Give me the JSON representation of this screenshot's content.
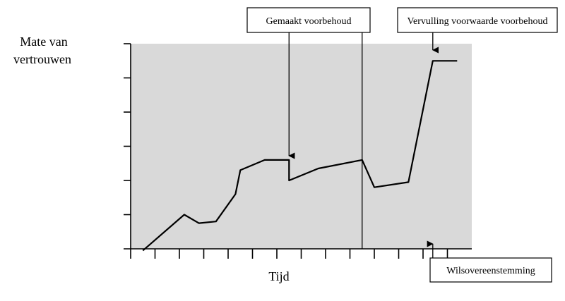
{
  "chart_data": {
    "type": "line",
    "ylabel_lines": [
      "Mate van",
      "vertrouwen"
    ],
    "xlabel": "Tijd",
    "x_ticks": 14,
    "y_ticks": 6,
    "xlim": [
      0,
      14
    ],
    "ylim": [
      0,
      6
    ],
    "grid": false,
    "background": "#d9d9d9",
    "line_color": "#000000",
    "series": [
      {
        "values": [
          [
            0.5,
            -0.05
          ],
          [
            2.2,
            1.0
          ],
          [
            2.8,
            0.75
          ],
          [
            3.5,
            0.8
          ],
          [
            4.3,
            1.6
          ],
          [
            4.5,
            2.3
          ],
          [
            5.5,
            2.6
          ],
          [
            6.5,
            2.6
          ],
          [
            6.5,
            2.0
          ],
          [
            7.7,
            2.35
          ],
          [
            9.5,
            2.6
          ],
          [
            10.0,
            1.8
          ],
          [
            11.4,
            1.95
          ],
          [
            12.4,
            5.5
          ],
          [
            13.4,
            5.5
          ]
        ]
      }
    ],
    "annotations": [
      {
        "text": "Gemaakt voorbehoud",
        "x": 6.5,
        "arrow": "down"
      },
      {
        "text": "Vervulling voorwaarde voorbehoud",
        "x": 12.4,
        "arrow": "down"
      },
      {
        "text": "Wilsovereenstemming",
        "x": 12.4,
        "arrow": "up"
      }
    ],
    "vertical_marker_x": 9.5
  }
}
